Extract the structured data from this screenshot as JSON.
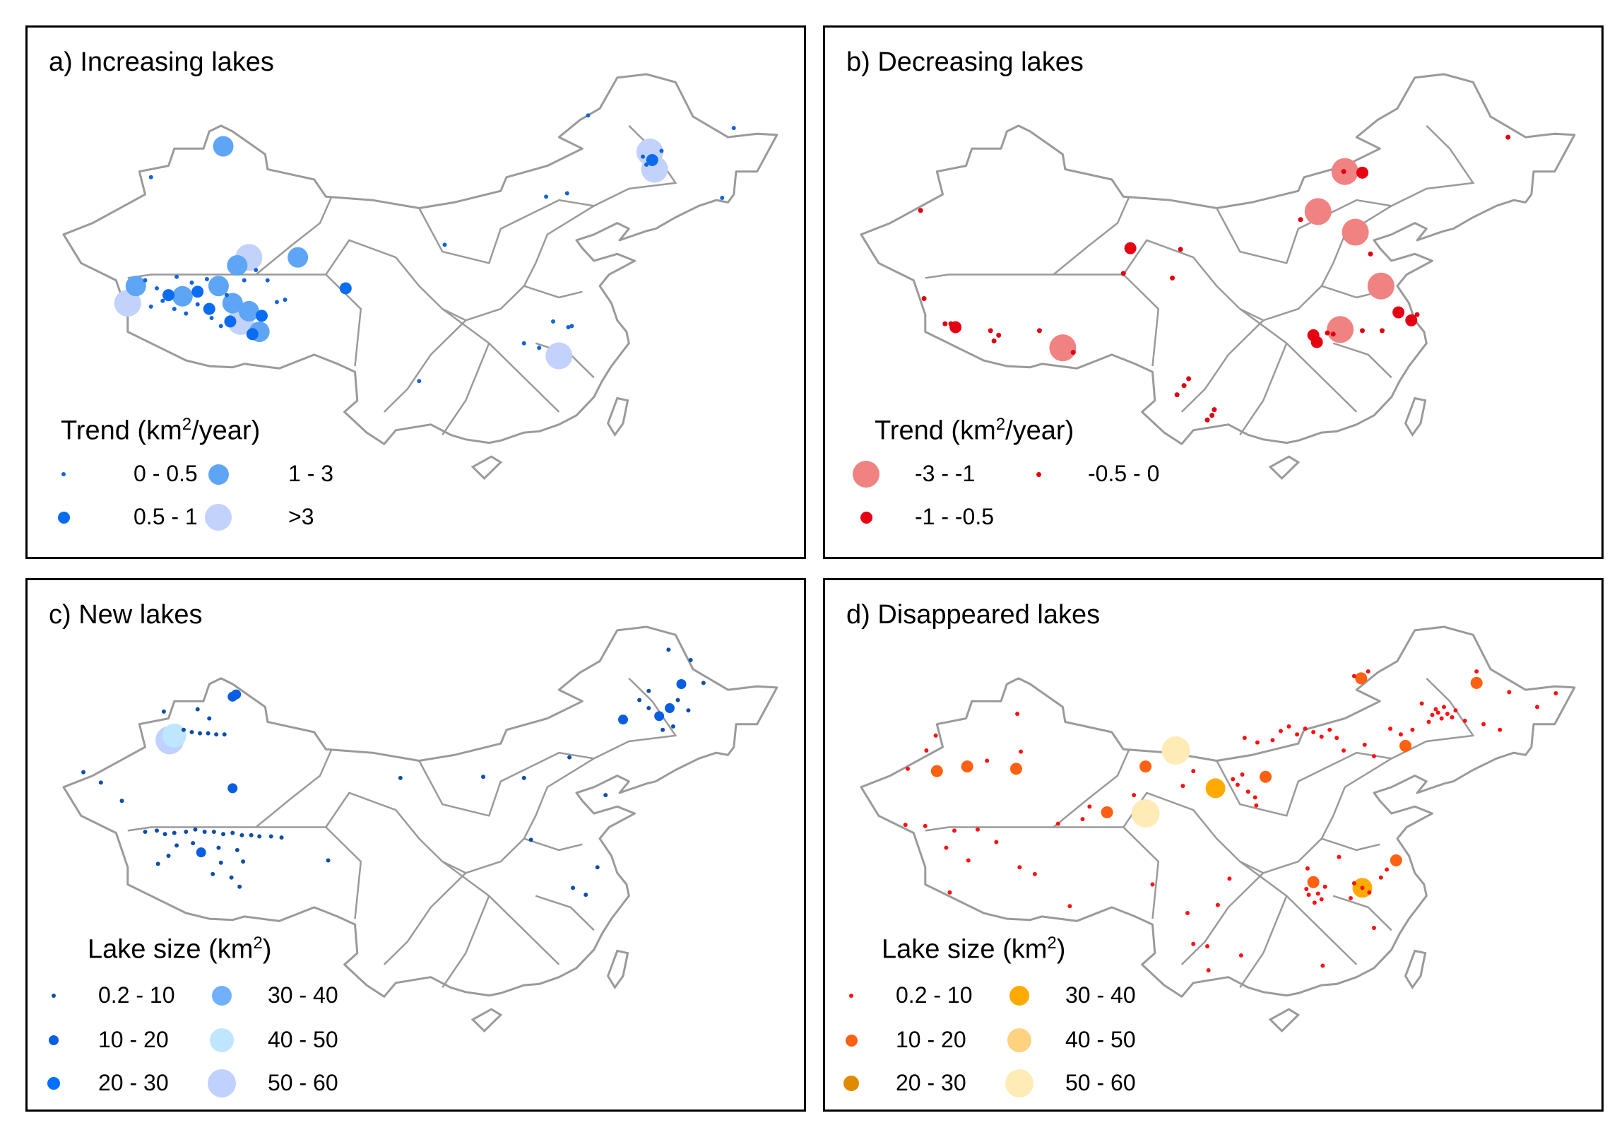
{
  "panels": [
    {
      "id": "a",
      "title": "a) Increasing lakes",
      "legend_title_prefix": "Trend (km",
      "legend_title_sup": "2",
      "legend_title_suffix": "/year)",
      "legend": [
        {
          "label": "0 - 0.5",
          "color": "#1464d8"
        },
        {
          "label": "0.5 - 1",
          "color": "#0a6cf0"
        },
        {
          "label": "1 - 3",
          "color": "#5ea6f5"
        },
        {
          "label": ">3",
          "color": "#c2d2fa"
        }
      ],
      "points": [
        [
          87.2,
          47.2,
          2
        ],
        [
          81,
          44.5,
          0
        ],
        [
          79.7,
          35,
          2
        ],
        [
          79,
          33.5,
          3
        ],
        [
          83.7,
          34.1,
          2
        ],
        [
          86.8,
          35,
          2
        ],
        [
          88.4,
          36.8,
          2
        ],
        [
          89.4,
          37.5,
          3
        ],
        [
          93.6,
          37.5,
          2
        ],
        [
          97.7,
          34.8,
          1
        ],
        [
          89.4,
          32.8,
          2
        ],
        [
          90.3,
          31,
          2
        ],
        [
          88.7,
          31.9,
          3
        ],
        [
          89.7,
          30.8,
          1
        ],
        [
          87.8,
          31.9,
          1
        ],
        [
          82.5,
          34.2,
          1
        ],
        [
          85,
          34.5,
          1
        ],
        [
          86,
          33,
          1
        ],
        [
          88,
          33.5,
          2
        ],
        [
          90.5,
          32.4,
          1
        ],
        [
          80.5,
          35.5,
          0
        ],
        [
          81.5,
          34.8,
          0
        ],
        [
          82,
          33.7,
          0
        ],
        [
          83,
          33,
          0
        ],
        [
          84,
          32.6,
          0
        ],
        [
          85,
          33.4,
          0
        ],
        [
          86.2,
          32.2,
          0
        ],
        [
          87,
          31.5,
          0
        ],
        [
          84.5,
          35.3,
          0
        ],
        [
          85.8,
          35.6,
          0
        ],
        [
          87.5,
          34.2,
          0
        ],
        [
          91,
          35.5,
          0
        ],
        [
          91.8,
          33.6,
          0
        ],
        [
          92.5,
          33.8,
          0
        ],
        [
          89,
          35.5,
          0
        ],
        [
          90,
          36.4,
          0
        ],
        [
          83.2,
          35.8,
          0
        ],
        [
          81,
          33.2,
          0
        ],
        [
          123.8,
          46.7,
          3
        ],
        [
          124.2,
          45.2,
          3
        ],
        [
          124,
          46,
          1
        ],
        [
          123.2,
          46.3,
          0
        ],
        [
          124.8,
          46.8,
          0
        ],
        [
          123.5,
          45.6,
          0
        ],
        [
          116,
          28.9,
          3
        ],
        [
          116.8,
          31.4,
          0
        ],
        [
          117.1,
          31.5,
          0
        ],
        [
          115.5,
          31.9,
          0
        ],
        [
          113,
          30,
          0
        ],
        [
          114.3,
          29.6,
          0
        ],
        [
          106.2,
          38.6,
          0
        ],
        [
          104,
          26.7,
          0
        ],
        [
          116.7,
          43.1,
          0
        ],
        [
          118.5,
          49.9,
          0
        ],
        [
          131,
          48.8,
          0
        ],
        [
          130,
          42.7,
          0
        ],
        [
          114.9,
          42.8,
          0
        ]
      ]
    },
    {
      "id": "b",
      "title": "b) Decreasing lakes",
      "legend_title_prefix": "Trend (km",
      "legend_title_sup": "2",
      "legend_title_suffix": "/year)",
      "legend": [
        {
          "label": "-3 - -1",
          "color": "#f08282"
        },
        {
          "label": "-1 - -0.5",
          "color": "#e60012"
        },
        {
          "label": "-0.5 - 0",
          "color": "#e00010"
        }
      ],
      "points": [
        [
          115,
          45,
          0
        ],
        [
          112.7,
          41.5,
          0
        ],
        [
          115.9,
          39.7,
          0
        ],
        [
          118.1,
          35,
          0
        ],
        [
          114.6,
          31.2,
          0
        ],
        [
          90.8,
          29.6,
          0
        ],
        [
          116.5,
          44.9,
          1
        ],
        [
          119.6,
          32.7,
          1
        ],
        [
          120.7,
          32,
          1
        ],
        [
          112.3,
          30.7,
          1
        ],
        [
          112.6,
          30.1,
          1
        ],
        [
          78.6,
          41.6,
          2
        ],
        [
          129,
          48,
          2
        ],
        [
          96.6,
          38.3,
          1
        ],
        [
          100.9,
          38.2,
          2
        ],
        [
          96,
          36.1,
          2
        ],
        [
          100.2,
          35.7,
          2
        ],
        [
          78.9,
          33.9,
          2
        ],
        [
          80.7,
          31.7,
          2
        ],
        [
          81.2,
          31.7,
          2
        ],
        [
          81.6,
          31.4,
          1
        ],
        [
          84.6,
          31.1,
          2
        ],
        [
          85.3,
          30.7,
          2
        ],
        [
          84.9,
          30.2,
          2
        ],
        [
          88.8,
          31.1,
          2
        ],
        [
          91.7,
          29.2,
          2
        ],
        [
          111.2,
          40.8,
          2
        ],
        [
          117.2,
          37.8,
          2
        ],
        [
          116.5,
          31.1,
          2
        ],
        [
          114,
          30.8,
          2
        ],
        [
          113.5,
          30.9,
          2
        ],
        [
          118.2,
          31.1,
          2
        ],
        [
          121.2,
          32.5,
          2
        ],
        [
          101.2,
          26.3,
          2
        ],
        [
          101.6,
          26.9,
          2
        ],
        [
          100.6,
          25.5,
          2
        ],
        [
          103.8,
          24.2,
          2
        ],
        [
          103.6,
          23.7,
          2
        ],
        [
          103.2,
          23.3,
          2
        ],
        [
          114.9,
          45,
          2
        ]
      ]
    },
    {
      "id": "c",
      "title": "c) New lakes",
      "legend_title_prefix": "Lake size (km",
      "legend_title_sup": "2",
      "legend_title_suffix": ")",
      "legend": [
        {
          "label": "0.2 - 10",
          "color": "#0d4fa8"
        },
        {
          "label": "10 - 20",
          "color": "#0a5fe0"
        },
        {
          "label": "20 - 30",
          "color": "#0070ff"
        },
        {
          "label": "30 - 40",
          "color": "#70b0ff"
        },
        {
          "label": "40 - 50",
          "color": "#bfe6ff"
        },
        {
          "label": "50 - 60",
          "color": "#c0d0ff"
        }
      ],
      "points": [
        [
          88,
          47.4,
          1
        ],
        [
          88.3,
          47.6,
          1
        ],
        [
          82.6,
          43.6,
          5
        ],
        [
          83,
          44,
          4
        ],
        [
          88,
          39.4,
          1
        ],
        [
          85.3,
          33.8,
          1
        ],
        [
          121.5,
          45.4,
          1
        ],
        [
          124.6,
          45.7,
          1
        ],
        [
          126.5,
          48.5,
          1
        ],
        [
          125.5,
          46.4,
          1
        ],
        [
          83.8,
          44.5,
          0
        ],
        [
          84.5,
          44.3,
          0
        ],
        [
          85.2,
          44.2,
          0
        ],
        [
          85.9,
          44.2,
          0
        ],
        [
          86.6,
          44.1,
          0
        ],
        [
          87.3,
          44.1,
          0
        ],
        [
          86,
          45.5,
          0
        ],
        [
          82.1,
          46.1,
          0
        ],
        [
          85,
          46.3,
          0
        ],
        [
          75.2,
          40.8,
          0
        ],
        [
          76.7,
          39.9,
          0
        ],
        [
          78.5,
          38.3,
          0
        ],
        [
          80.5,
          35.6,
          0
        ],
        [
          81.5,
          35.7,
          0
        ],
        [
          82.2,
          35.4,
          0
        ],
        [
          83,
          35.5,
          0
        ],
        [
          84,
          35.6,
          0
        ],
        [
          84.8,
          35.8,
          0
        ],
        [
          85.6,
          35.6,
          0
        ],
        [
          86.4,
          35.6,
          0
        ],
        [
          87.2,
          35.4,
          0
        ],
        [
          88,
          35.5,
          0
        ],
        [
          88.8,
          35.3,
          0
        ],
        [
          89.6,
          35.3,
          0
        ],
        [
          90.3,
          35.2,
          0
        ],
        [
          91.3,
          35.2,
          0
        ],
        [
          92.2,
          35.1,
          0
        ],
        [
          83.2,
          34.4,
          0
        ],
        [
          84.6,
          34.6,
          0
        ],
        [
          86.8,
          34.2,
          0
        ],
        [
          88.4,
          34,
          0
        ],
        [
          82.5,
          33.5,
          0
        ],
        [
          87,
          32.9,
          0
        ],
        [
          88.9,
          33,
          0
        ],
        [
          81.6,
          32.8,
          0
        ],
        [
          86.3,
          31.9,
          0
        ],
        [
          87.9,
          31.6,
          0
        ],
        [
          88.6,
          30.8,
          0
        ],
        [
          96.2,
          33.1,
          0
        ],
        [
          102.4,
          40.3,
          0
        ],
        [
          109.5,
          40.4,
          0
        ],
        [
          113,
          40.3,
          0
        ],
        [
          113.6,
          34.9,
          0
        ],
        [
          117.2,
          30.7,
          0
        ],
        [
          118.3,
          30.1,
          0
        ],
        [
          119.3,
          32.5,
          0
        ],
        [
          120,
          38.8,
          0
        ],
        [
          116.9,
          42.1,
          0
        ],
        [
          125.4,
          51.5,
          0
        ],
        [
          127.3,
          50.6,
          0
        ],
        [
          128.4,
          48.6,
          0
        ],
        [
          123.7,
          47.9,
          0
        ],
        [
          126.2,
          47.1,
          0
        ],
        [
          127.1,
          46.2,
          0
        ],
        [
          123.7,
          46.4,
          0
        ],
        [
          124.9,
          44.5,
          0
        ],
        [
          125.8,
          44.8,
          0
        ],
        [
          122.9,
          47.1,
          0
        ]
      ]
    },
    {
      "id": "d",
      "title": "d) Disappeared lakes",
      "legend_title_prefix": "Lake size (km",
      "legend_title_sup": "2",
      "legend_title_suffix": ")",
      "legend": [
        {
          "label": "0.2 - 10",
          "color": "#ff1010"
        },
        {
          "label": "10 - 20",
          "color": "#ff6012"
        },
        {
          "label": "20 - 30",
          "color": "#e08a00"
        },
        {
          "label": "30 - 40",
          "color": "#ffaa00"
        },
        {
          "label": "40 - 50",
          "color": "#ffd280"
        },
        {
          "label": "50 - 60",
          "color": "#ffebb5"
        }
      ],
      "points": [
        [
          100.5,
          42.7,
          5
        ],
        [
          97.9,
          37.2,
          5
        ],
        [
          103.9,
          39.4,
          3
        ],
        [
          116.5,
          30.7,
          3
        ],
        [
          80,
          40.9,
          1
        ],
        [
          82.6,
          41.3,
          1
        ],
        [
          86.8,
          41.1,
          1
        ],
        [
          97.9,
          41.3,
          1
        ],
        [
          94.6,
          37.3,
          1
        ],
        [
          108.2,
          40.4,
          1
        ],
        [
          112.3,
          31.2,
          1
        ],
        [
          119.4,
          33.1,
          1
        ],
        [
          120.2,
          43.1,
          1
        ],
        [
          126.3,
          48.6,
          1
        ],
        [
          116.4,
          49,
          1
        ],
        [
          116.5,
          30.7,
          0
        ],
        [
          122.5,
          45.8,
          0
        ],
        [
          123,
          46,
          0
        ],
        [
          123.3,
          45.5,
          0
        ],
        [
          123.8,
          45.9,
          0
        ],
        [
          124.2,
          45.6,
          0
        ],
        [
          122.8,
          46.3,
          0
        ],
        [
          123.5,
          46.5,
          0
        ],
        [
          124.5,
          46.2,
          0
        ],
        [
          122.2,
          45.2,
          0
        ],
        [
          121.6,
          46.8,
          0
        ],
        [
          125.3,
          45.3,
          0
        ],
        [
          120.8,
          44.5,
          0
        ],
        [
          119.8,
          44.1,
          0
        ],
        [
          118.9,
          44.6,
          0
        ],
        [
          129.1,
          47.8,
          0
        ],
        [
          131.5,
          46.5,
          0
        ],
        [
          133.1,
          47.7,
          0
        ],
        [
          117,
          49.6,
          0
        ],
        [
          115.8,
          49.2,
          0
        ],
        [
          109.5,
          44.4,
          0
        ],
        [
          110.2,
          44.8,
          0
        ],
        [
          110.9,
          44.1,
          0
        ],
        [
          111.6,
          44.6,
          0
        ],
        [
          112.3,
          44.3,
          0
        ],
        [
          113,
          43.9,
          0
        ],
        [
          113.7,
          44.5,
          0
        ],
        [
          114.3,
          43.8,
          0
        ],
        [
          108.8,
          43.6,
          0
        ],
        [
          107.5,
          43.4,
          0
        ],
        [
          106.4,
          43.8,
          0
        ],
        [
          114.9,
          42.7,
          0
        ],
        [
          116.7,
          43.2,
          0
        ],
        [
          117.5,
          42.2,
          0
        ],
        [
          105.4,
          40.2,
          0
        ],
        [
          106.2,
          40.6,
          0
        ],
        [
          105.8,
          39.7,
          0
        ],
        [
          106.7,
          39.1,
          0
        ],
        [
          107.3,
          38.6,
          0
        ],
        [
          107.4,
          37.9,
          0
        ],
        [
          102,
          40.9,
          0
        ],
        [
          101.1,
          39.6,
          0
        ],
        [
          96.9,
          38.8,
          0
        ],
        [
          93.1,
          37.8,
          0
        ],
        [
          92.5,
          36.7,
          0
        ],
        [
          90.4,
          36.3,
          0
        ],
        [
          87.2,
          42.6,
          0
        ],
        [
          84.3,
          41.8,
          0
        ],
        [
          86.9,
          45.9,
          0
        ],
        [
          79.9,
          44,
          0
        ],
        [
          79.1,
          42.7,
          0
        ],
        [
          77.5,
          41.1,
          0
        ],
        [
          77.3,
          36.2,
          0
        ],
        [
          79,
          36.1,
          0
        ],
        [
          81.5,
          35.7,
          0
        ],
        [
          83.5,
          35.8,
          0
        ],
        [
          85.1,
          34.7,
          0
        ],
        [
          80.8,
          34.2,
          0
        ],
        [
          82.7,
          33.1,
          0
        ],
        [
          87.1,
          32.5,
          0
        ],
        [
          88.4,
          31.9,
          0
        ],
        [
          81.1,
          30.3,
          0
        ],
        [
          91.4,
          29.1,
          0
        ],
        [
          98.5,
          31,
          0
        ],
        [
          101.5,
          28.5,
          0
        ],
        [
          104.1,
          29.2,
          0
        ],
        [
          105.1,
          31.5,
          0
        ],
        [
          103.2,
          25.6,
          0
        ],
        [
          102,
          25.8,
          0
        ],
        [
          103.3,
          23.5,
          0
        ],
        [
          106.1,
          24.8,
          0
        ],
        [
          111.7,
          30.6,
          0
        ],
        [
          111.9,
          30.1,
          0
        ],
        [
          112.7,
          30.2,
          0
        ],
        [
          113.3,
          30.8,
          0
        ],
        [
          112.4,
          29.4,
          0
        ],
        [
          113,
          29.7,
          0
        ],
        [
          115.8,
          31.1,
          0
        ],
        [
          117.1,
          30.3,
          0
        ],
        [
          118.1,
          31.6,
          0
        ],
        [
          118.6,
          32.3,
          0
        ],
        [
          114.5,
          33.4,
          0
        ],
        [
          113.1,
          23.9,
          0
        ],
        [
          117.5,
          27.2,
          0
        ],
        [
          115.5,
          29.8,
          0
        ],
        [
          111.8,
          32.4,
          0
        ],
        [
          126.3,
          49.6,
          0
        ],
        [
          126.9,
          45,
          0
        ],
        [
          128.3,
          44.5,
          0
        ]
      ]
    }
  ]
}
